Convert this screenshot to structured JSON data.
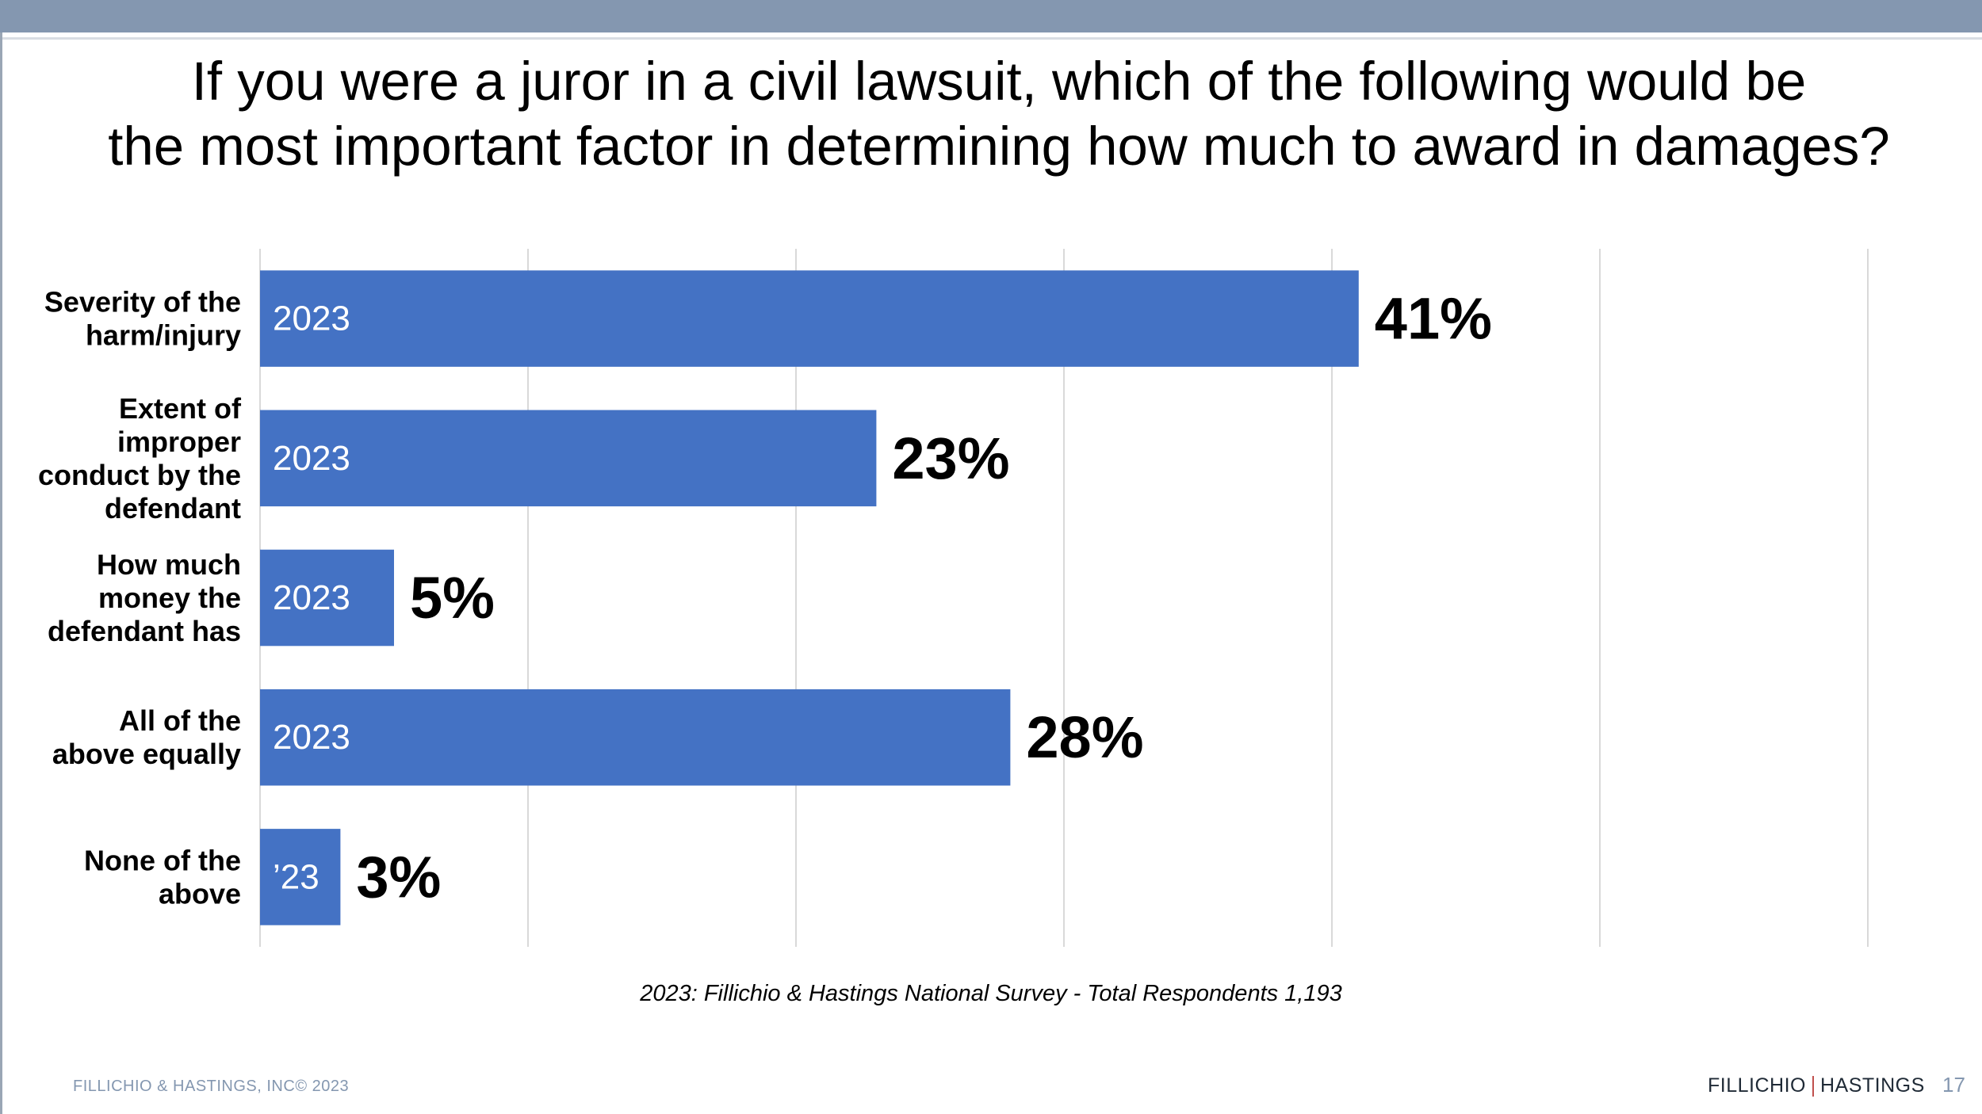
{
  "slide": {
    "title": "If you were a juror in a civil lawsuit, which of the following would be\nthe most important factor in determining how much to award in damages?",
    "source_note": "2023: Fillichio & Hastings National Survey   - Total Respondents 1,193",
    "footer_copyright": "FILLICHIO & HASTINGS, INC© 2023",
    "brand_left": "FILLICHIO",
    "brand_right": "HASTINGS",
    "page_number": "17"
  },
  "colors": {
    "bar": "#4472c4",
    "top_bar": "#8497b0",
    "gridline": "#d9d9d9"
  },
  "chart_data": {
    "type": "bar",
    "orientation": "horizontal",
    "categories": [
      [
        "Severity of the",
        "harm/injury"
      ],
      [
        "Extent of",
        "improper",
        "conduct by the",
        "defendant"
      ],
      [
        "How much",
        "money the",
        "defendant has"
      ],
      [
        "All of the",
        "above equally"
      ],
      [
        "None of the",
        "above"
      ]
    ],
    "series": [
      {
        "name": "2023",
        "values": [
          41,
          23,
          5,
          28,
          3
        ],
        "bar_labels": [
          "2023",
          "2023",
          "2023",
          "2023",
          "’23"
        ],
        "value_labels": [
          "41%",
          "23%",
          "5%",
          "28%",
          "3%"
        ]
      }
    ],
    "xlim": [
      0,
      60
    ],
    "grid": true,
    "legend": "none"
  }
}
